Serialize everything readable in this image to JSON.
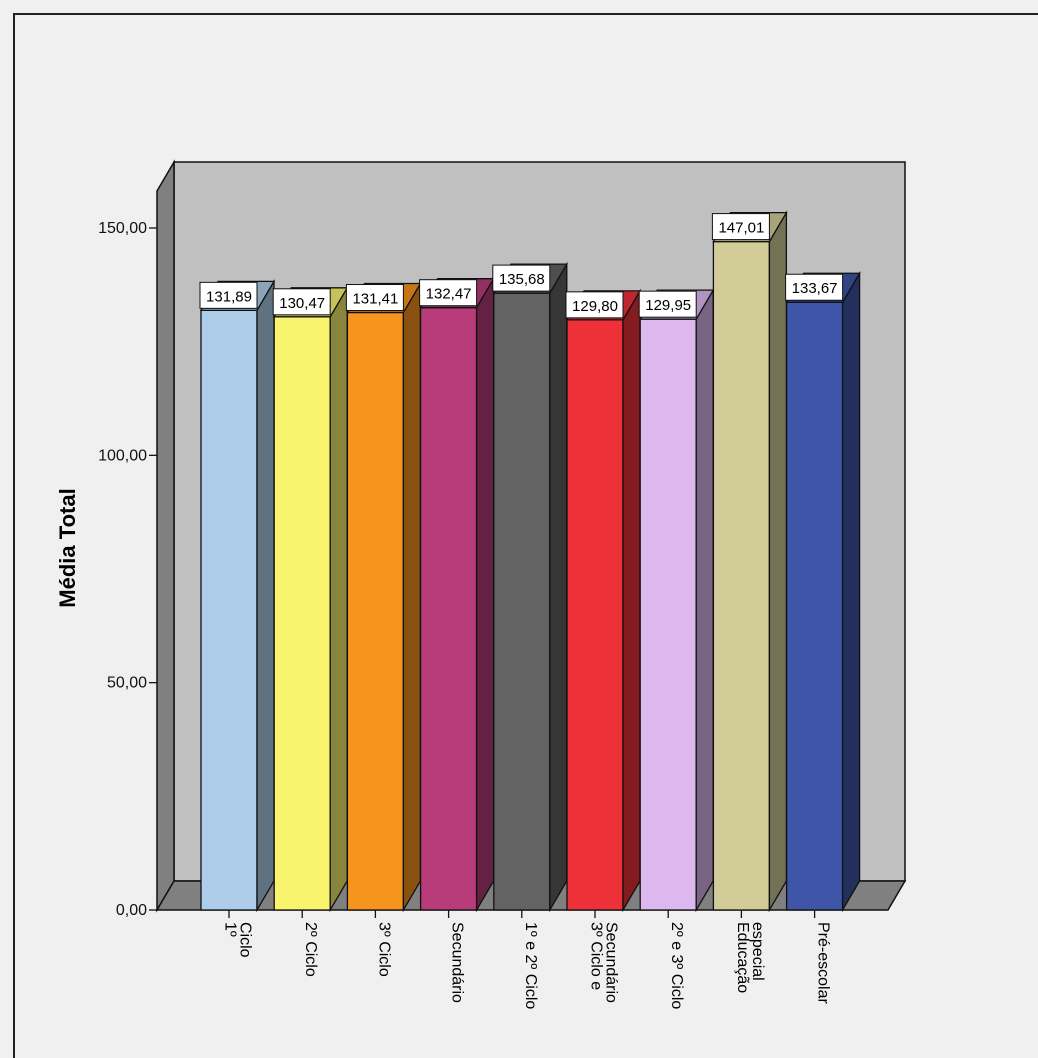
{
  "chart_data": {
    "type": "bar",
    "title": "",
    "xlabel": "",
    "ylabel": "Média Total",
    "ylim": [
      0,
      150
    ],
    "yticks": [
      "0,00",
      "50,00",
      "100,00",
      "150,00"
    ],
    "ytick_values": [
      0,
      50,
      100,
      150
    ],
    "categories": [
      [
        "1º",
        "Ciclo"
      ],
      [
        "2º Ciclo"
      ],
      [
        "3º Ciclo"
      ],
      [
        "Secundário"
      ],
      [
        "1º e 2º Ciclo"
      ],
      [
        "3º Ciclo e",
        "Secundário"
      ],
      [
        "2º e 3º Ciclo"
      ],
      [
        "Educação",
        "especial"
      ],
      [
        "Pré-escolar"
      ]
    ],
    "values": [
      131.89,
      130.47,
      131.41,
      132.47,
      135.68,
      129.8,
      129.95,
      147.01,
      133.67
    ],
    "value_labels": [
      "131,89",
      "130,47",
      "131,41",
      "132,47",
      "135,68",
      "129,80",
      "129,95",
      "147,01",
      "133,67"
    ],
    "colors": [
      "#aecde9",
      "#f8f46e",
      "#f7941d",
      "#b83c7a",
      "#636363",
      "#ee3139",
      "#dcb8ef",
      "#d2cd98",
      "#3f55a8"
    ],
    "grid": false,
    "legend": "none",
    "style": "3d"
  }
}
